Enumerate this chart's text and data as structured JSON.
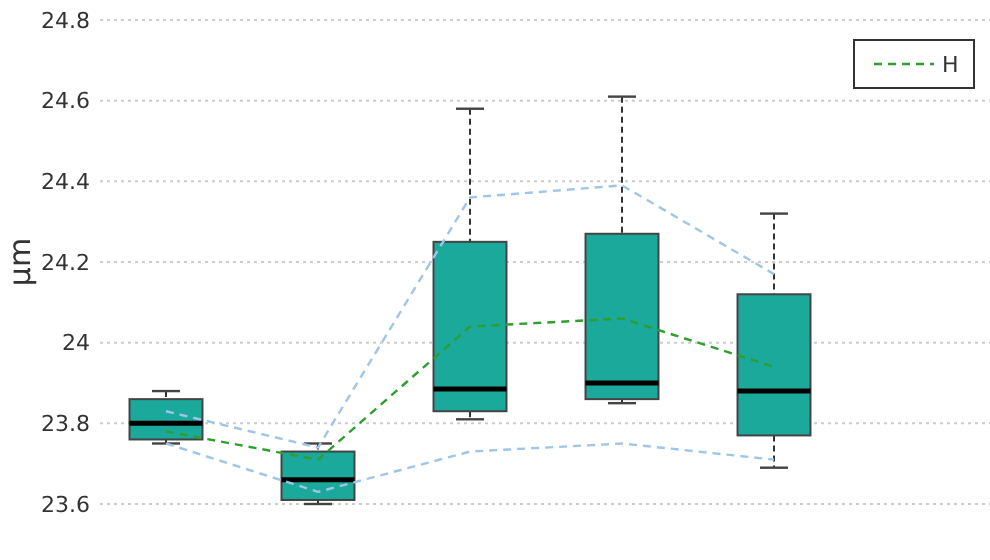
{
  "chart_data": {
    "type": "box",
    "ylabel": "μm",
    "categories": [
      null,
      null,
      null,
      null,
      null
    ],
    "color": "#1aa99b",
    "boxes": [
      {
        "low": 23.75,
        "q1": 23.76,
        "median": 23.8,
        "q3": 23.86,
        "high": 23.88
      },
      {
        "low": 23.6,
        "q1": 23.61,
        "median": 23.66,
        "q3": 23.73,
        "high": 23.75
      },
      {
        "low": 23.81,
        "q1": 23.83,
        "median": 23.885,
        "q3": 24.25,
        "high": 24.58
      },
      {
        "low": 23.85,
        "q1": 23.86,
        "median": 23.9,
        "q3": 24.27,
        "high": 24.61
      },
      {
        "low": 23.69,
        "q1": 23.77,
        "median": 23.88,
        "q3": 24.12,
        "high": 24.32
      }
    ],
    "series": [
      {
        "type": "line",
        "name": "H",
        "color": "#2e9e2e",
        "line_style": "dashed",
        "values": [
          23.78,
          23.71,
          24.04,
          24.06,
          23.94
        ]
      },
      {
        "type": "line",
        "color": "#9fc5e8",
        "line_style": "dashed",
        "values": [
          23.83,
          23.74,
          24.36,
          24.39,
          24.17
        ]
      },
      {
        "type": "line",
        "color": "#9fc5e8",
        "line_style": "dashed",
        "values": [
          23.75,
          23.63,
          23.73,
          23.75,
          23.71
        ]
      }
    ],
    "ylim": [
      23.6,
      24.8
    ],
    "yticks": [
      23.6,
      23.8,
      24,
      24.2,
      24.4,
      24.6,
      24.8
    ],
    "grid": "y",
    "legend": "top right",
    "marker": "none"
  }
}
